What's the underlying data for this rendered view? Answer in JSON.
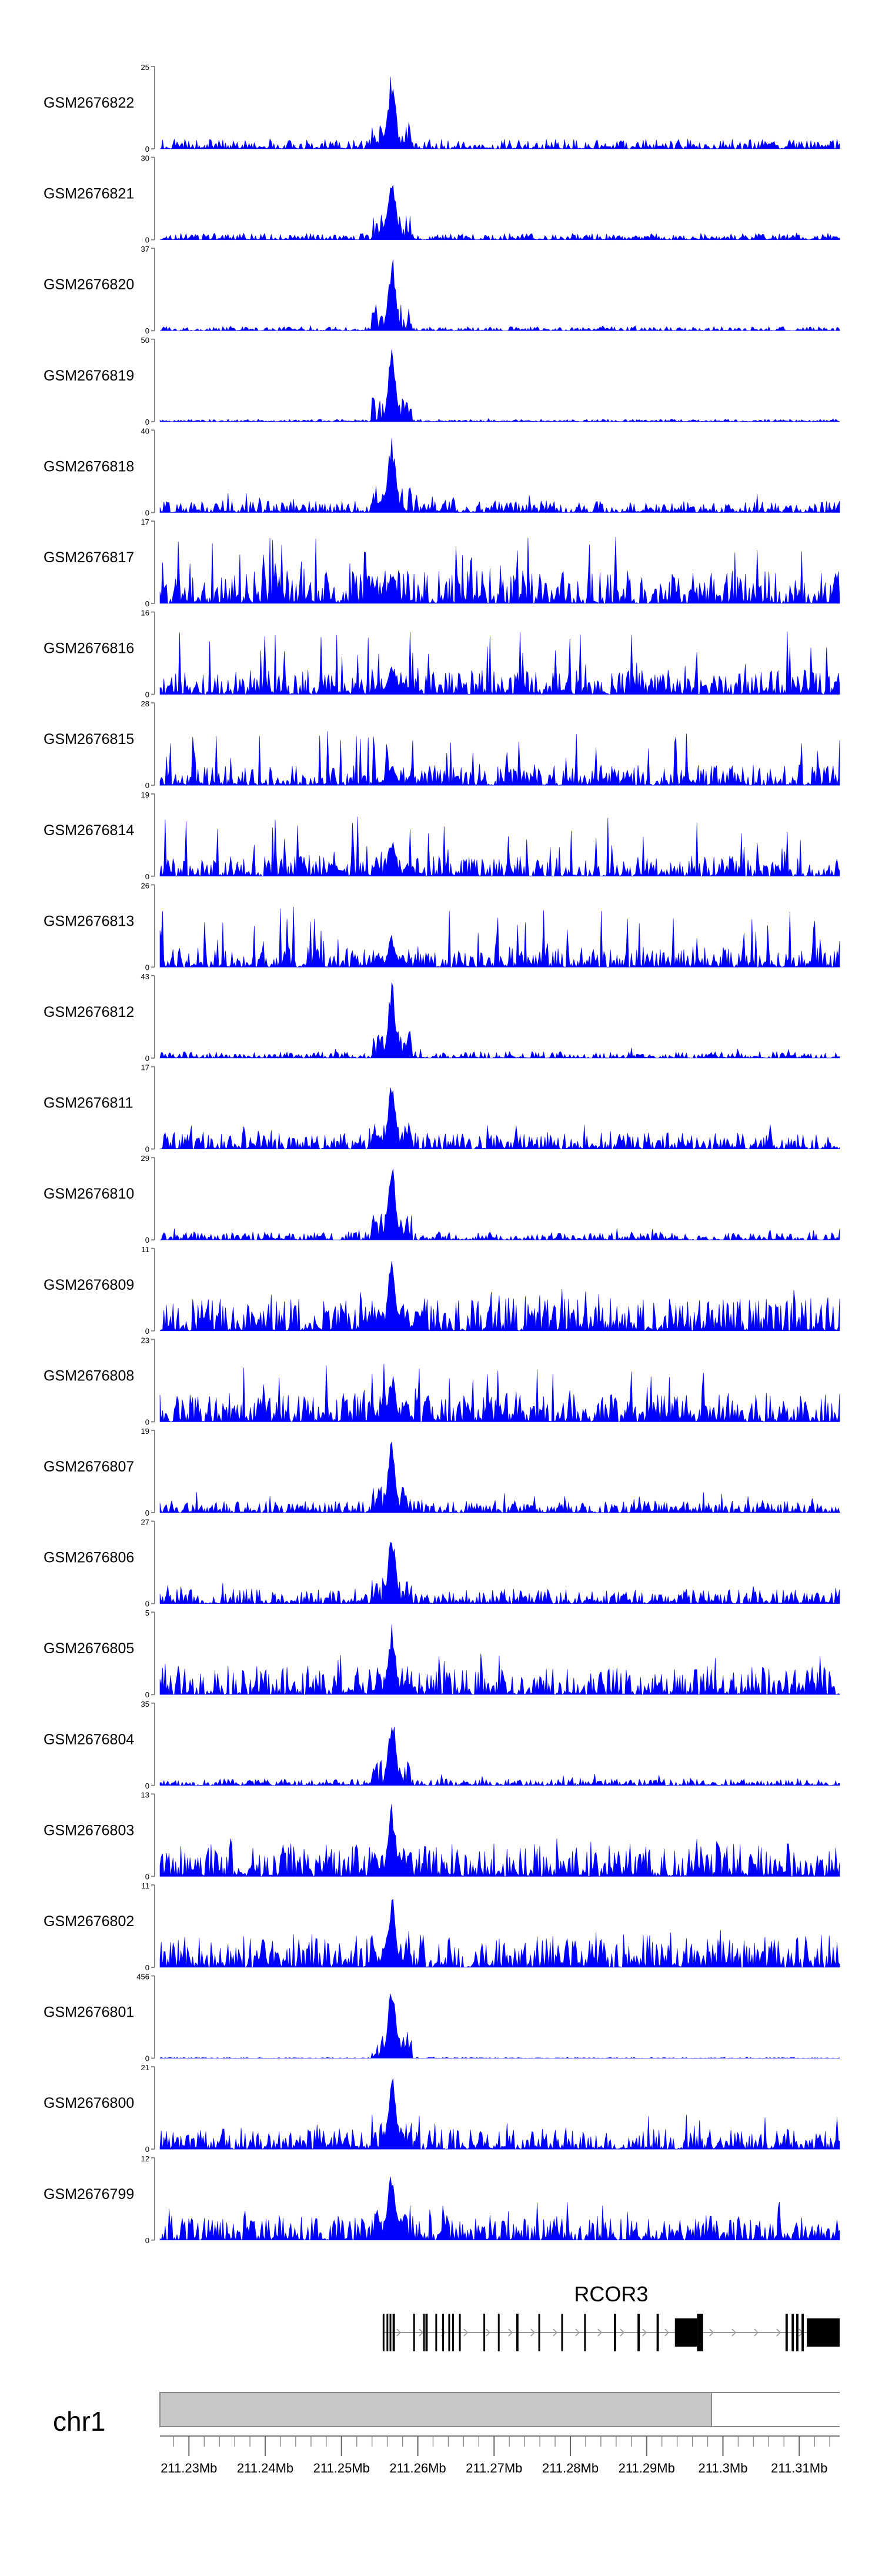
{
  "chart_data": {
    "type": "area",
    "title": "",
    "xlabel": "",
    "ylabel": "",
    "xlim": [
      211.2262,
      211.3153
    ],
    "ymin": 0,
    "peak_center": 211.2566,
    "series_color": "#0000ff",
    "tracks": [
      {
        "name": "GSM2676822",
        "ymax": "25",
        "peak_frac": 0.95,
        "bg_frac": 0.12,
        "flare": 0.1,
        "seed": 22
      },
      {
        "name": "GSM2676821",
        "ymax": "30",
        "peak_frac": 0.9,
        "bg_frac": 0.08,
        "flare": 0.1,
        "seed": 21
      },
      {
        "name": "GSM2676820",
        "ymax": "37",
        "peak_frac": 0.92,
        "bg_frac": 0.05,
        "flare": 0.08,
        "seed": 20
      },
      {
        "name": "GSM2676819",
        "ymax": "50",
        "peak_frac": 0.88,
        "bg_frac": 0.03,
        "flare": 0.05,
        "seed": 19
      },
      {
        "name": "GSM2676818",
        "ymax": "40",
        "peak_frac": 0.92,
        "bg_frac": 0.14,
        "flare": 0.3,
        "seed": 18
      },
      {
        "name": "GSM2676817",
        "ymax": "17",
        "peak_frac": 0.4,
        "bg_frac": 0.4,
        "flare": 1.0,
        "seed": 17
      },
      {
        "name": "GSM2676816",
        "ymax": "16",
        "peak_frac": 0.4,
        "bg_frac": 0.3,
        "flare": 0.9,
        "seed": 16
      },
      {
        "name": "GSM2676815",
        "ymax": "28",
        "peak_frac": 0.3,
        "bg_frac": 0.25,
        "flare": 0.8,
        "seed": 15
      },
      {
        "name": "GSM2676814",
        "ymax": "19",
        "peak_frac": 0.5,
        "bg_frac": 0.25,
        "flare": 0.85,
        "seed": 14
      },
      {
        "name": "GSM2676813",
        "ymax": "26",
        "peak_frac": 0.4,
        "bg_frac": 0.25,
        "flare": 0.9,
        "seed": 13
      },
      {
        "name": "GSM2676812",
        "ymax": "43",
        "peak_frac": 0.95,
        "bg_frac": 0.08,
        "flare": 0.15,
        "seed": 12
      },
      {
        "name": "GSM2676811",
        "ymax": "17",
        "peak_frac": 0.92,
        "bg_frac": 0.2,
        "flare": 0.35,
        "seed": 11
      },
      {
        "name": "GSM2676810",
        "ymax": "29",
        "peak_frac": 0.92,
        "bg_frac": 0.1,
        "flare": 0.18,
        "seed": 10
      },
      {
        "name": "GSM2676809",
        "ymax": "11",
        "peak_frac": 0.92,
        "bg_frac": 0.4,
        "flare": 0.6,
        "seed": 9
      },
      {
        "name": "GSM2676808",
        "ymax": "23",
        "peak_frac": 0.6,
        "bg_frac": 0.35,
        "flare": 0.85,
        "seed": 8
      },
      {
        "name": "GSM2676807",
        "ymax": "19",
        "peak_frac": 0.92,
        "bg_frac": 0.15,
        "flare": 0.3,
        "seed": 7
      },
      {
        "name": "GSM2676806",
        "ymax": "27",
        "peak_frac": 0.9,
        "bg_frac": 0.18,
        "flare": 0.3,
        "seed": 6
      },
      {
        "name": "GSM2676805",
        "ymax": "5",
        "peak_frac": 0.9,
        "bg_frac": 0.35,
        "flare": 0.6,
        "seed": 5
      },
      {
        "name": "GSM2676804",
        "ymax": "35",
        "peak_frac": 0.92,
        "bg_frac": 0.08,
        "flare": 0.18,
        "seed": 4
      },
      {
        "name": "GSM2676803",
        "ymax": "13",
        "peak_frac": 0.92,
        "bg_frac": 0.4,
        "flare": 0.55,
        "seed": 3
      },
      {
        "name": "GSM2676802",
        "ymax": "11",
        "peak_frac": 0.92,
        "bg_frac": 0.4,
        "flare": 0.55,
        "seed": 2
      },
      {
        "name": "GSM2676801",
        "ymax": "456",
        "peak_frac": 0.95,
        "bg_frac": 0.01,
        "flare": 0.02,
        "seed": 1
      },
      {
        "name": "GSM2676800",
        "ymax": "21",
        "peak_frac": 0.92,
        "bg_frac": 0.25,
        "flare": 0.5,
        "seed": 100
      },
      {
        "name": "GSM2676799",
        "ymax": "12",
        "peak_frac": 0.92,
        "bg_frac": 0.3,
        "flare": 0.55,
        "seed": 99
      }
    ],
    "gene": {
      "name": "RCOR3",
      "start": 211.2554,
      "end": 211.3153,
      "exons": [
        [
          211.2554,
          211.2556
        ],
        [
          211.2559,
          211.2561
        ],
        [
          211.2563,
          211.2565
        ],
        [
          211.2567,
          211.257
        ],
        [
          211.2594,
          211.2596
        ],
        [
          211.2607,
          211.2609
        ],
        [
          211.261,
          211.2613
        ],
        [
          211.2623,
          211.2625
        ],
        [
          211.2632,
          211.2634
        ],
        [
          211.264,
          211.2642
        ],
        [
          211.2645,
          211.2647
        ],
        [
          211.2654,
          211.2656
        ],
        [
          211.2686,
          211.2688
        ],
        [
          211.2705,
          211.2707
        ],
        [
          211.2729,
          211.2732
        ],
        [
          211.2758,
          211.276
        ],
        [
          211.2788,
          211.279
        ],
        [
          211.2818,
          211.282
        ],
        [
          211.2857,
          211.286
        ],
        [
          211.2888,
          211.2891
        ],
        [
          211.2913,
          211.2916
        ],
        [
          211.2937,
          211.2966
        ],
        [
          211.2966,
          211.2974
        ],
        [
          211.3082,
          211.3085
        ],
        [
          211.309,
          211.3093
        ],
        [
          211.3096,
          211.3099
        ],
        [
          211.3103,
          211.3106
        ],
        [
          211.311,
          211.3153
        ]
      ]
    },
    "ideogram": {
      "label": "chr1",
      "highlight": [
        211.2262,
        211.2985
      ]
    },
    "axis": {
      "ticks": [
        "211.23Mb",
        "211.24Mb",
        "211.25Mb",
        "211.26Mb",
        "211.27Mb",
        "211.28Mb",
        "211.29Mb",
        "211.3Mb",
        "211.31Mb"
      ],
      "tick_values": [
        211.23,
        211.24,
        211.25,
        211.26,
        211.27,
        211.28,
        211.29,
        211.3,
        211.31
      ],
      "minor_step": 0.002
    }
  }
}
